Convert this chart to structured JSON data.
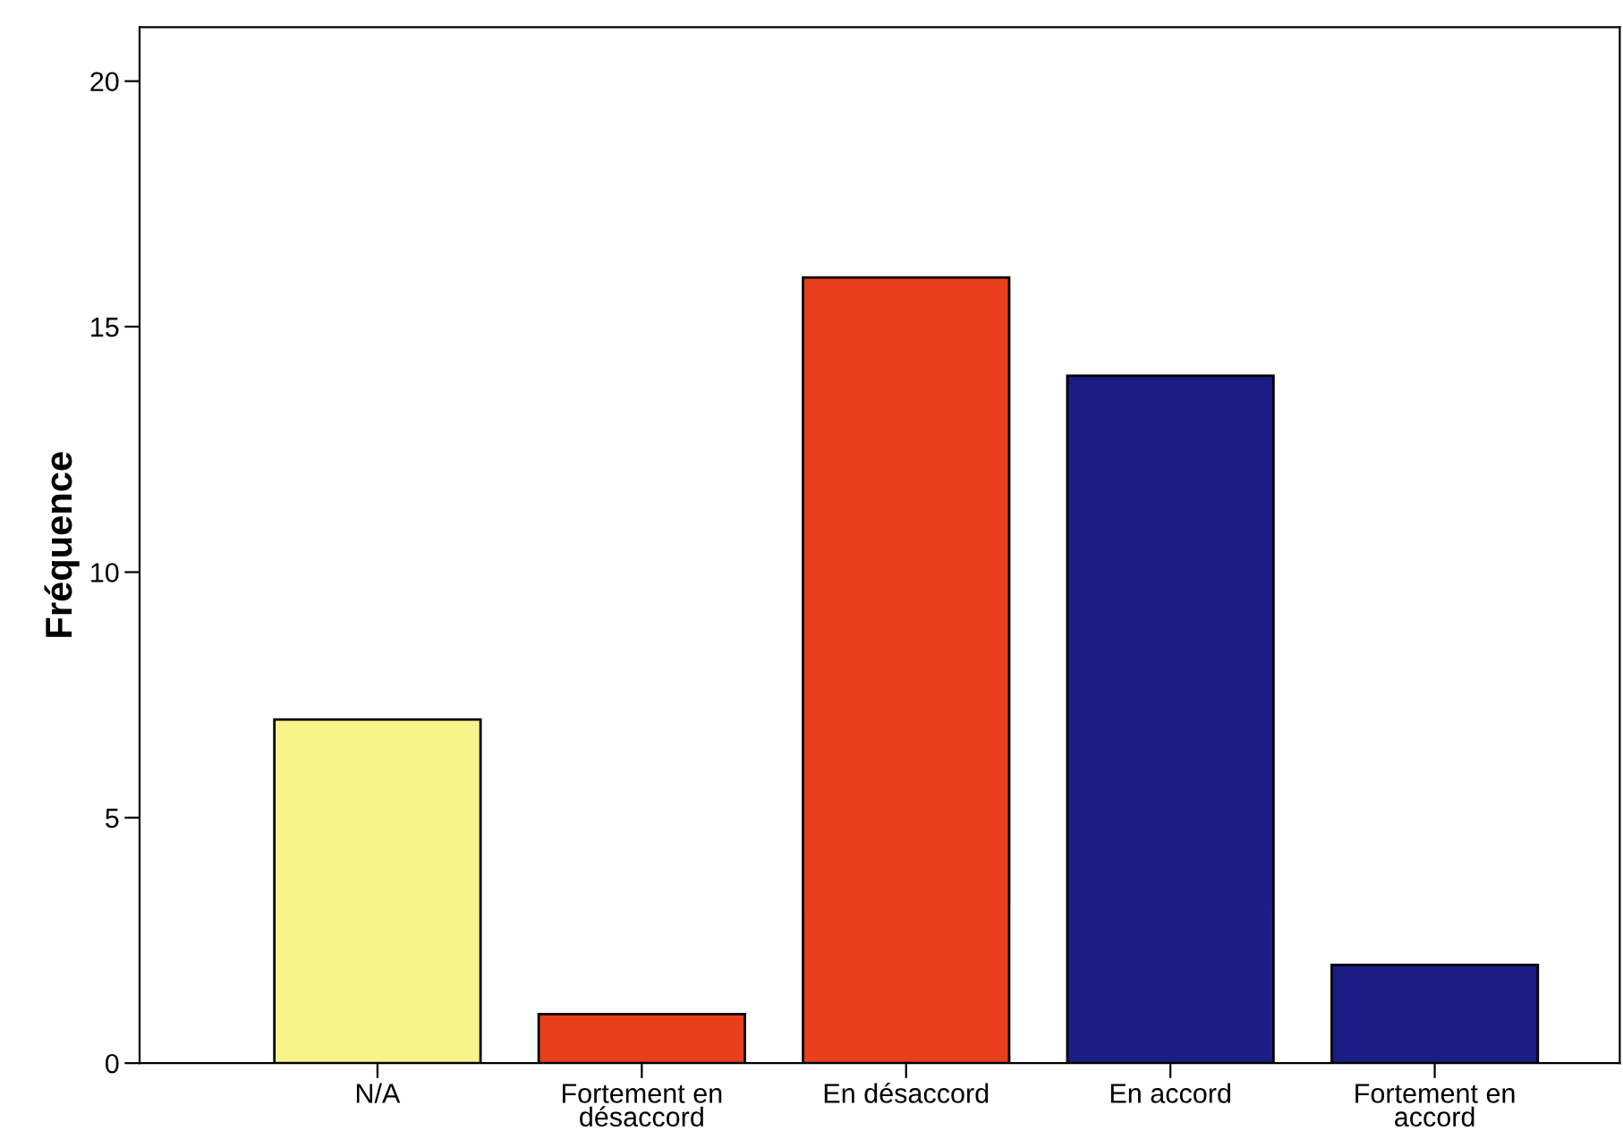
{
  "chart_data": {
    "type": "bar",
    "ylabel": "Fréquence",
    "categories": [
      "N/A",
      "Fortement en\ndésaccord",
      "En désaccord",
      "En accord",
      "Fortement en\naccord"
    ],
    "values": [
      7,
      1,
      16,
      14,
      2
    ],
    "colors": [
      "#f8f48c",
      "#e8401c",
      "#e8401c",
      "#1c1c84",
      "#1c1c84"
    ],
    "ylim": [
      0,
      21.1
    ],
    "yticks": [
      0,
      5,
      10,
      15,
      20
    ],
    "grid": false
  }
}
